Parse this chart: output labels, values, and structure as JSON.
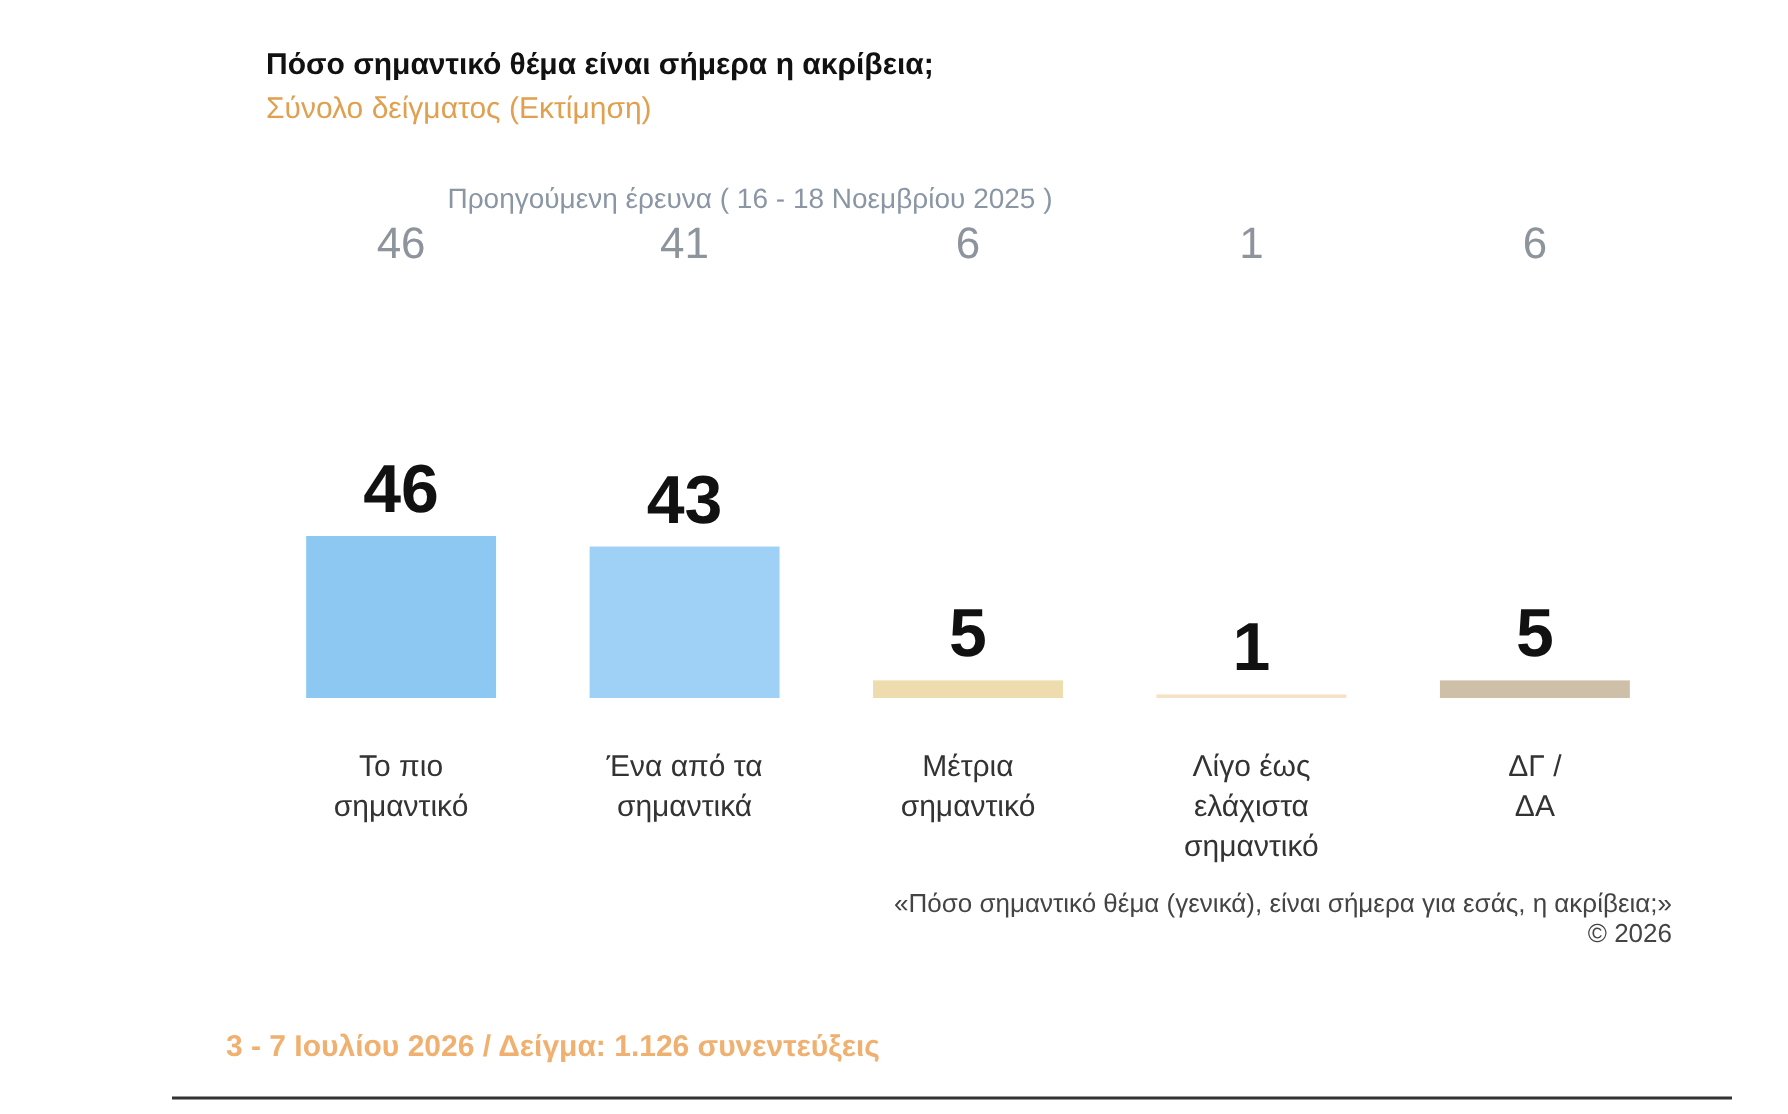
{
  "chart_data": {
    "type": "bar",
    "title": "Πόσο σημαντικό θέμα είναι σήμερα η ακρίβεια;",
    "subtitle": "Σύνολο δείγματος (Εκτίμηση)",
    "categories": [
      "Το πιο\nσημαντικό",
      "Ένα από τα\nσημαντικά",
      "Μέτρια\nσημαντικό",
      "Λίγο έως\nελάχιστα\nσημαντικό",
      "ΔΓ /\nΔΑ"
    ],
    "values": [
      46,
      43,
      5,
      1,
      5
    ],
    "colors": [
      "#8cc8f2",
      "#9fd0f5",
      "#efdcae",
      "#f3e2c4",
      "#cdbfa8"
    ],
    "data_labels": true,
    "annotations": [
      "Προηγούμενη έρευνα ( 16 - 18 Νοεμβρίου 2025 )",
      "46",
      "41",
      "6",
      "1",
      "6",
      "«Πόσο σημαντικό θέμα (γενικά), είναι σήμερα για εσάς, η ακρίβεια;»",
      "© 2026",
      "3 - 7 Ιουλίου 2026  /  Δείγμα:  1.126 συνεντεύξεις"
    ]
  }
}
